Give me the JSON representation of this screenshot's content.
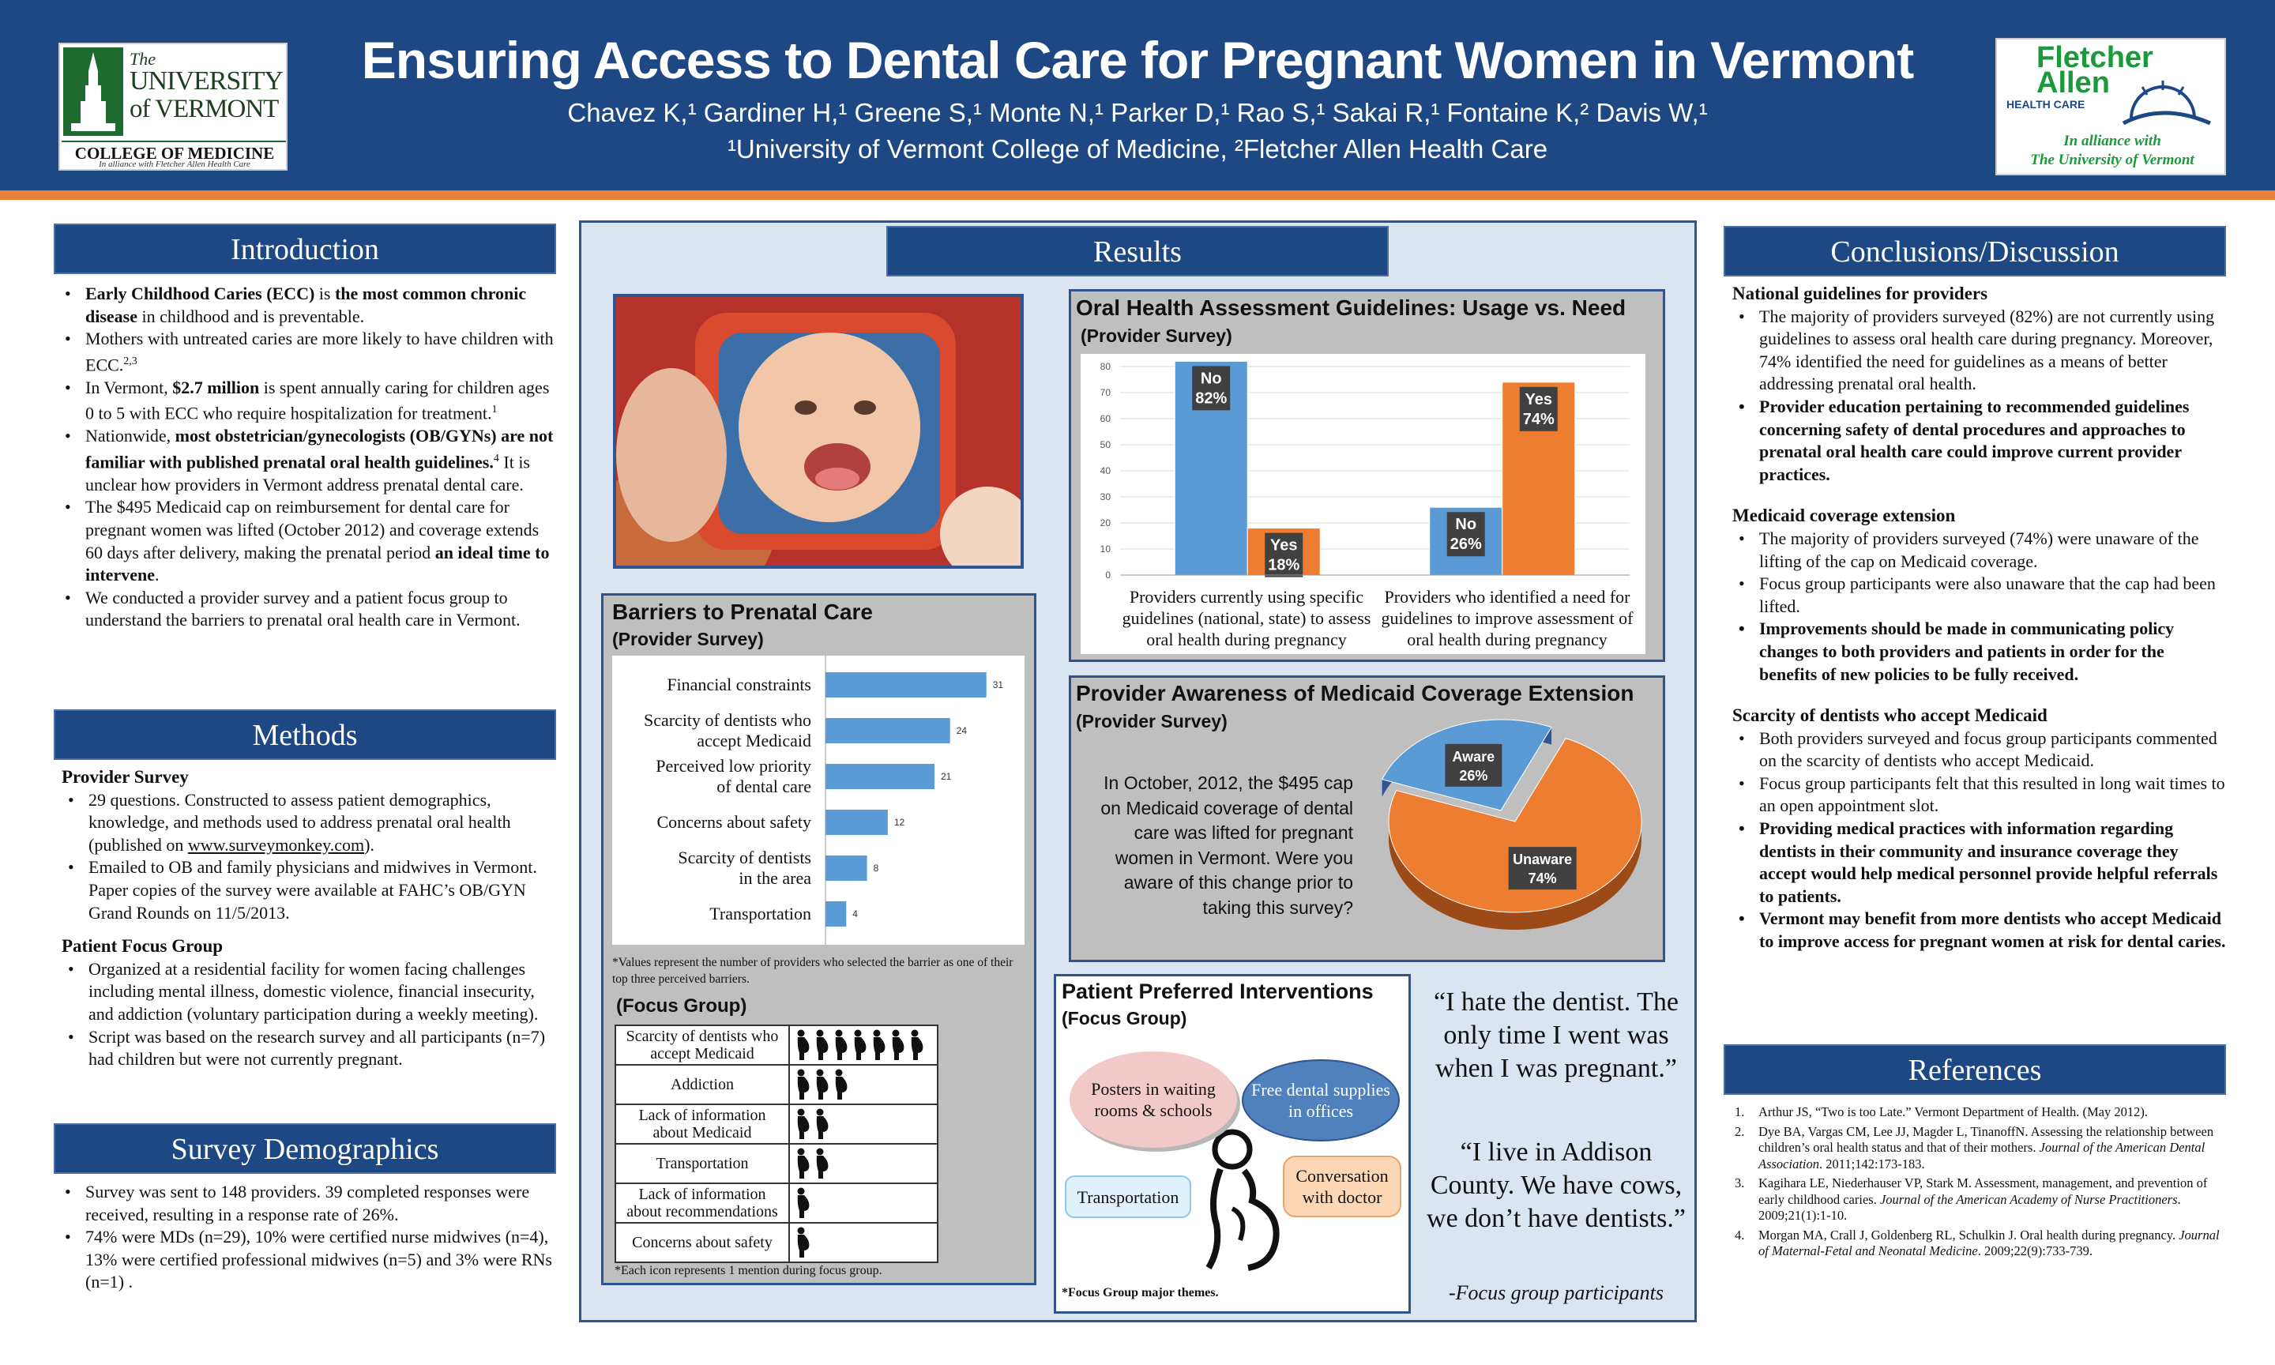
{
  "header": {
    "title": "Ensuring Access to Dental Care for Pregnant Women in Vermont",
    "authors": "Chavez K,¹ Gardiner H,¹ Greene S,¹ Monte N,¹ Parker D,¹  Rao S,¹ Sakai R,¹ Fontaine K,² Davis W,¹",
    "affiliations": "¹University of Vermont College of Medicine, ²Fletcher Allen Health Care",
    "uvm_logo": {
      "line1": "The",
      "line2": "UNIVERSITY",
      "line3": "of VERMONT",
      "line4": "COLLEGE OF MEDICINE",
      "line5": "In alliance with Fletcher Allen Health Care"
    },
    "fa_logo": {
      "line1": "Fletcher",
      "line2": "Allen",
      "line3": "HEALTH CARE",
      "line4": "In alliance with",
      "line5": "The University of Vermont"
    }
  },
  "colors": {
    "navy": "#1e4884",
    "orange": "#e8823a",
    "chart_blue": "#5b9bd5",
    "chart_orange": "#ed7d31",
    "panel_bg": "#dbe5f1"
  },
  "introduction": {
    "heading": "Introduction",
    "items": [
      {
        "b1": "Early Childhood Caries (ECC)",
        "t1": " is ",
        "b2": "the most common chronic disease",
        "t2": " in childhood and is preventable."
      },
      {
        "t1": "Mothers with untreated caries are more likely to have children with ECC.",
        "sup": "2,3"
      },
      {
        "t1": "In Vermont, ",
        "b1": "$2.7 million",
        "t2": " is spent annually caring for children ages 0 to 5 with ECC who require hospitalization for treatment.",
        "sup": "1"
      },
      {
        "t1": "Nationwide, ",
        "b1": "most obstetrician/gynecologists (OB/GYNs) are not familiar with published prenatal oral health guidelines.",
        "sup": "4",
        "t2": " It is unclear how providers in Vermont address prenatal dental care."
      },
      {
        "t1": "The $495 Medicaid cap on reimbursement for dental care for pregnant women was lifted (October 2012) and coverage extends 60 days after delivery, making the prenatal period ",
        "b1": "an ideal time to intervene",
        "t2": "."
      },
      {
        "t1": "We conducted a provider survey and a patient focus group to understand the barriers to prenatal oral health care in Vermont."
      }
    ]
  },
  "methods": {
    "heading": "Methods",
    "provider_heading": "Provider Survey",
    "provider_items": [
      {
        "t1": "29 questions. Constructed to assess patient demographics, knowledge, and methods used to address prenatal oral health (published on ",
        "link": "www.surveymonkey.com",
        "t2": ")."
      },
      {
        "t1": "Emailed to OB and family physicians and midwives in Vermont. Paper copies of the survey were available at FAHC’s OB/GYN Grand Rounds on 11/5/2013."
      }
    ],
    "focus_heading": "Patient Focus Group",
    "focus_items": [
      "Organized at a residential facility for women facing challenges including mental illness, domestic violence, financial insecurity, and addiction (voluntary participation during a weekly meeting).",
      "Script was based on the research survey and all participants (n=7) had children but were not currently pregnant."
    ]
  },
  "demographics": {
    "heading": "Survey Demographics",
    "items": [
      "Survey was sent to 148 providers. 39 completed responses were received, resulting in a response rate of 26%.",
      "74% were MDs (n=29), 10% were certified nurse midwives (n=4), 13% were certified professional midwives (n=5) and 3% were RNs (n=1) ."
    ]
  },
  "results": {
    "heading": "Results",
    "barriers": {
      "title": "Barriers to Prenatal Care",
      "subtitle": "(Provider Survey)",
      "footnote": "*Values represent the number of providers who selected the barrier as one of their top three perceived barriers.",
      "focus_title": "(Focus Group)",
      "focus_footnote": "*Each icon represents 1 mention during focus group.",
      "focus_rows": [
        {
          "label": "Scarcity of dentists who accept Medicaid",
          "count": 7
        },
        {
          "label": "Addiction",
          "count": 3
        },
        {
          "label": "Lack of information about Medicaid",
          "count": 2
        },
        {
          "label": "Transportation",
          "count": 2
        },
        {
          "label": "Lack of information about recommendations",
          "count": 1
        },
        {
          "label": "Concerns about safety",
          "count": 1
        }
      ]
    },
    "guidelines": {
      "title": "Oral Health Assessment Guidelines: Usage vs. Need",
      "subtitle": "(Provider Survey)"
    },
    "awareness": {
      "title": "Provider Awareness of Medicaid Coverage Extension",
      "subtitle": "(Provider Survey)",
      "question": "In October, 2012, the $495 cap on Medicaid coverage of dental care was lifted for pregnant women in Vermont. Were you aware of this change prior to taking this survey?"
    },
    "interventions": {
      "title": "Patient Preferred Interventions",
      "subtitle": "(Focus Group)",
      "bubbles": [
        "Posters in waiting rooms & schools",
        "Free dental supplies in offices",
        "Transportation",
        "Conversation with doctor"
      ],
      "footnote": "*Focus Group major themes."
    },
    "quotes": {
      "q1": "“I hate the dentist. The only time I went was when I was pregnant.”",
      "q2": "“I live in Addison County. We have cows, we don’t have dentists.”",
      "attribution": "-Focus group participants"
    }
  },
  "chart_data": [
    {
      "type": "bar",
      "title": "Barriers to Prenatal Care",
      "orientation": "horizontal",
      "categories": [
        "Financial constraints",
        "Scarcity of dentists who accept Medicaid",
        "Perceived low priority of dental care",
        "Concerns about safety",
        "Scarcity of dentists in the area",
        "Transportation"
      ],
      "values": [
        31,
        24,
        21,
        12,
        8,
        4
      ],
      "xlim": [
        0,
        35
      ]
    },
    {
      "type": "bar",
      "title": "Oral Health Assessment Guidelines: Usage vs. Need",
      "categories": [
        "Providers currently using specific guidelines (national, state) to assess oral health during pregnancy",
        "Providers who identified a need for guidelines to improve assessment of oral health during pregnancy"
      ],
      "series": [
        {
          "name": "No",
          "values": [
            82,
            26
          ],
          "labels": [
            "82%",
            "26%"
          ]
        },
        {
          "name": "Yes",
          "values": [
            18,
            74
          ],
          "labels": [
            "18%",
            "74%"
          ]
        }
      ],
      "ylim": [
        0,
        80
      ],
      "yticks": [
        0,
        10,
        20,
        30,
        40,
        50,
        60,
        70,
        80
      ],
      "grid": true
    },
    {
      "type": "pie",
      "title": "Provider Awareness of Medicaid Coverage Extension",
      "categories": [
        "Aware",
        "Unaware"
      ],
      "values": [
        26,
        74
      ],
      "labels": [
        "26%",
        "74%"
      ]
    }
  ],
  "conclusions": {
    "heading": "Conclusions/Discussion",
    "sections": [
      {
        "title": "National guidelines for providers",
        "items": [
          {
            "text": "The majority of providers surveyed  (82%) are not currently using guidelines to assess oral health care during pregnancy. Moreover, 74% identified the need for guidelines as a means of better addressing prenatal oral health.",
            "bold": false
          },
          {
            "text": "Provider education pertaining to recommended guidelines concerning safety of dental procedures and approaches to prenatal oral health care could improve current provider practices.",
            "bold": true
          }
        ]
      },
      {
        "title": "Medicaid coverage extension",
        "items": [
          {
            "text": "The majority of providers surveyed  (74%) were unaware of the lifting of the cap on Medicaid coverage.",
            "bold": false
          },
          {
            "text": "Focus group participants were also unaware that the cap had been lifted.",
            "bold": false
          },
          {
            "text": "Improvements should be made in communicating policy changes to both providers and patients in order for the benefits of new policies to be fully received.",
            "bold": true
          }
        ]
      },
      {
        "title": "Scarcity of dentists who accept Medicaid",
        "items": [
          {
            "text": "Both providers surveyed and focus group participants commented on  the scarcity of dentists who accept Medicaid.",
            "bold": false
          },
          {
            "text": "Focus group participants felt that this resulted in long wait times to an open appointment slot.",
            "bold": false
          },
          {
            "text": "Providing medical practices with information regarding dentists in their community and insurance coverage they accept would help medical personnel provide helpful referrals to patients.",
            "bold": true
          },
          {
            "text": "Vermont may benefit from more dentists who accept Medicaid to improve access for pregnant women at risk for dental caries.",
            "bold": true
          }
        ]
      }
    ]
  },
  "references": {
    "heading": "References",
    "items": [
      {
        "n": "1.",
        "text": "Arthur JS, “Two is too Late.” Vermont Department of Health. (May 2012).",
        "journal": ""
      },
      {
        "n": "2.",
        "text": "Dye BA, Vargas CM, Lee JJ, Magder L, TinanoffN. Assessing the relationship between children’s oral health status and that of their mothers. ",
        "journal": "Journal of the American Dental Association",
        "tail": ". 2011;142:173-183."
      },
      {
        "n": "3.",
        "text": "Kagihara LE, Niederhauser VP, Stark M. Assessment, management, and prevention of early childhood caries. ",
        "journal": "Journal of the American Academy of Nurse Practitioners",
        "tail": ". 2009;21(1):1-10."
      },
      {
        "n": "4.",
        "text": "Morgan MA, Crall J, Goldenberg RL, Schulkin J. Oral health during pregnancy. ",
        "journal": "Journal of Maternal-Fetal and Neonatal Medicine",
        "tail": ". 2009;22(9):733-739."
      }
    ]
  }
}
